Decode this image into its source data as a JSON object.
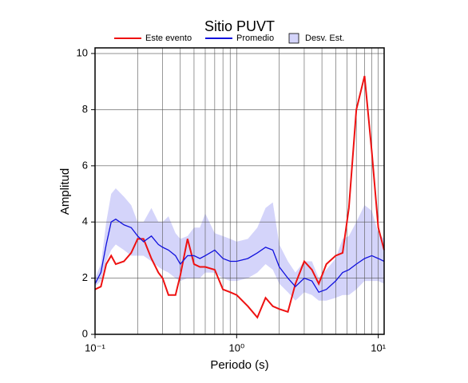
{
  "chart_data": {
    "type": "line",
    "title": "Sitio PUVT",
    "xlabel": "Periodo (s)",
    "ylabel": "Amplitud",
    "xscale": "log",
    "xlim": [
      0.1,
      11
    ],
    "ylim": [
      0,
      10.2
    ],
    "xticks": [
      {
        "value": 0.1,
        "label": "10⁻¹"
      },
      {
        "value": 1,
        "label": "10⁰"
      },
      {
        "value": 10,
        "label": "10¹"
      }
    ],
    "yticks": [
      0,
      2,
      4,
      6,
      8,
      10
    ],
    "grid": true,
    "x": [
      0.1,
      0.11,
      0.12,
      0.13,
      0.14,
      0.16,
      0.18,
      0.2,
      0.22,
      0.25,
      0.28,
      0.3,
      0.33,
      0.37,
      0.4,
      0.45,
      0.5,
      0.55,
      0.6,
      0.7,
      0.8,
      0.9,
      1.0,
      1.2,
      1.4,
      1.6,
      1.8,
      2.0,
      2.3,
      2.6,
      3.0,
      3.4,
      3.8,
      4.3,
      5.0,
      5.6,
      6.2,
      7.0,
      8.0,
      9.0,
      10,
      11
    ],
    "series": [
      {
        "name": "Este evento",
        "color": "#ee1111",
        "values": [
          1.6,
          1.7,
          2.5,
          2.8,
          2.5,
          2.6,
          2.9,
          3.4,
          3.4,
          2.7,
          2.2,
          2.0,
          1.4,
          1.4,
          2.1,
          3.4,
          2.5,
          2.4,
          2.4,
          2.3,
          1.6,
          1.5,
          1.4,
          1.0,
          0.6,
          1.3,
          1.0,
          0.9,
          0.8,
          1.8,
          2.6,
          2.3,
          1.8,
          2.5,
          2.8,
          2.9,
          4.5,
          8.0,
          9.2,
          6.5,
          3.8,
          3.0
        ]
      },
      {
        "name": "Promedio",
        "color": "#1111dd",
        "values": [
          1.8,
          2.2,
          3.2,
          4.0,
          4.1,
          3.9,
          3.8,
          3.5,
          3.3,
          3.5,
          3.2,
          3.1,
          3.0,
          2.8,
          2.5,
          2.8,
          2.8,
          2.7,
          2.8,
          3.0,
          2.7,
          2.6,
          2.6,
          2.7,
          2.9,
          3.1,
          3.0,
          2.4,
          2.0,
          1.7,
          2.0,
          1.9,
          1.5,
          1.6,
          1.9,
          2.2,
          2.3,
          2.5,
          2.7,
          2.8,
          2.7,
          2.6
        ]
      },
      {
        "name": "Desv. Est.",
        "color": "#d4d4fa",
        "upper": [
          2.0,
          2.5,
          4.0,
          5.0,
          5.2,
          4.9,
          4.6,
          4.0,
          4.0,
          4.5,
          4.0,
          4.0,
          4.2,
          3.6,
          3.4,
          3.5,
          3.8,
          3.8,
          4.3,
          3.6,
          3.5,
          3.4,
          3.3,
          3.4,
          3.8,
          4.5,
          4.7,
          3.2,
          2.6,
          2.2,
          2.6,
          2.6,
          2.0,
          2.3,
          2.7,
          3.4,
          3.5,
          4.0,
          4.6,
          4.4,
          3.6,
          3.4
        ],
        "lower": [
          1.7,
          1.9,
          2.6,
          3.0,
          3.2,
          3.0,
          2.8,
          2.8,
          2.8,
          2.6,
          2.4,
          2.3,
          2.2,
          2.0,
          1.9,
          2.0,
          2.0,
          2.0,
          2.2,
          2.2,
          2.0,
          1.9,
          1.9,
          2.0,
          2.2,
          2.5,
          2.3,
          1.8,
          1.5,
          1.2,
          1.5,
          1.4,
          1.2,
          1.2,
          1.3,
          1.4,
          1.4,
          1.6,
          1.9,
          1.9,
          1.9,
          1.8
        ]
      }
    ]
  }
}
